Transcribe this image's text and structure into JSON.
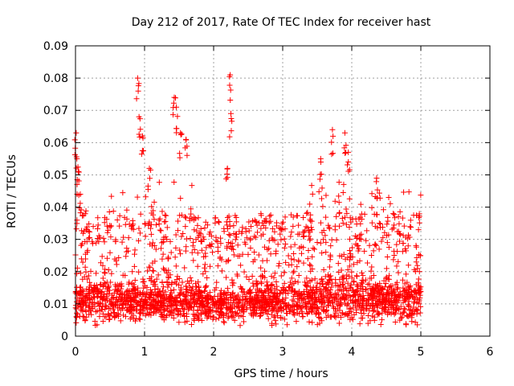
{
  "chart_data": {
    "type": "scatter",
    "title": "Day 212 of 2017, Rate Of TEC Index for receiver hast",
    "xlabel": "GPS time / hours",
    "ylabel": "ROTI / TECUs",
    "xlim": [
      0,
      6
    ],
    "ylim": [
      0,
      0.09
    ],
    "x_ticks": [
      "0",
      "1",
      "2",
      "3",
      "4",
      "5",
      "6"
    ],
    "y_ticks": [
      "0",
      "0.01",
      "0.02",
      "0.03",
      "0.04",
      "0.05",
      "0.06",
      "0.07",
      "0.08",
      "0.09"
    ],
    "grid": true,
    "marker": "+",
    "color": "#ff0000",
    "notable_points": [
      {
        "x": 0.01,
        "y": 0.063
      },
      {
        "x": 0.02,
        "y": 0.055
      },
      {
        "x": 0.04,
        "y": 0.051
      },
      {
        "x": 0.07,
        "y": 0.044
      },
      {
        "x": 0.9,
        "y": 0.08
      },
      {
        "x": 0.92,
        "y": 0.068
      },
      {
        "x": 0.97,
        "y": 0.062
      },
      {
        "x": 1.07,
        "y": 0.052
      },
      {
        "x": 1.43,
        "y": 0.074
      },
      {
        "x": 1.46,
        "y": 0.071
      },
      {
        "x": 1.52,
        "y": 0.063
      },
      {
        "x": 1.6,
        "y": 0.061
      },
      {
        "x": 2.24,
        "y": 0.081
      },
      {
        "x": 2.25,
        "y": 0.069
      },
      {
        "x": 2.2,
        "y": 0.052
      },
      {
        "x": 3.55,
        "y": 0.055
      },
      {
        "x": 3.72,
        "y": 0.064
      },
      {
        "x": 3.9,
        "y": 0.063
      },
      {
        "x": 3.95,
        "y": 0.057
      },
      {
        "x": 4.36,
        "y": 0.049
      },
      {
        "x": 4.6,
        "y": 0.038
      },
      {
        "x": 4.98,
        "y": 0.02
      }
    ],
    "density_profile": [
      {
        "x_range": [
          0.0,
          0.5
        ],
        "base": 0.011,
        "spread": 0.006,
        "top": 0.04
      },
      {
        "x_range": [
          0.5,
          1.2
        ],
        "base": 0.011,
        "spread": 0.006,
        "top": 0.045
      },
      {
        "x_range": [
          1.2,
          1.7
        ],
        "base": 0.011,
        "spread": 0.006,
        "top": 0.05
      },
      {
        "x_range": [
          1.7,
          2.6
        ],
        "base": 0.01,
        "spread": 0.005,
        "top": 0.038
      },
      {
        "x_range": [
          2.6,
          3.3
        ],
        "base": 0.011,
        "spread": 0.006,
        "top": 0.038
      },
      {
        "x_range": [
          3.3,
          4.1
        ],
        "base": 0.012,
        "spread": 0.007,
        "top": 0.048
      },
      {
        "x_range": [
          4.1,
          5.0
        ],
        "base": 0.011,
        "spread": 0.006,
        "top": 0.045
      }
    ]
  }
}
